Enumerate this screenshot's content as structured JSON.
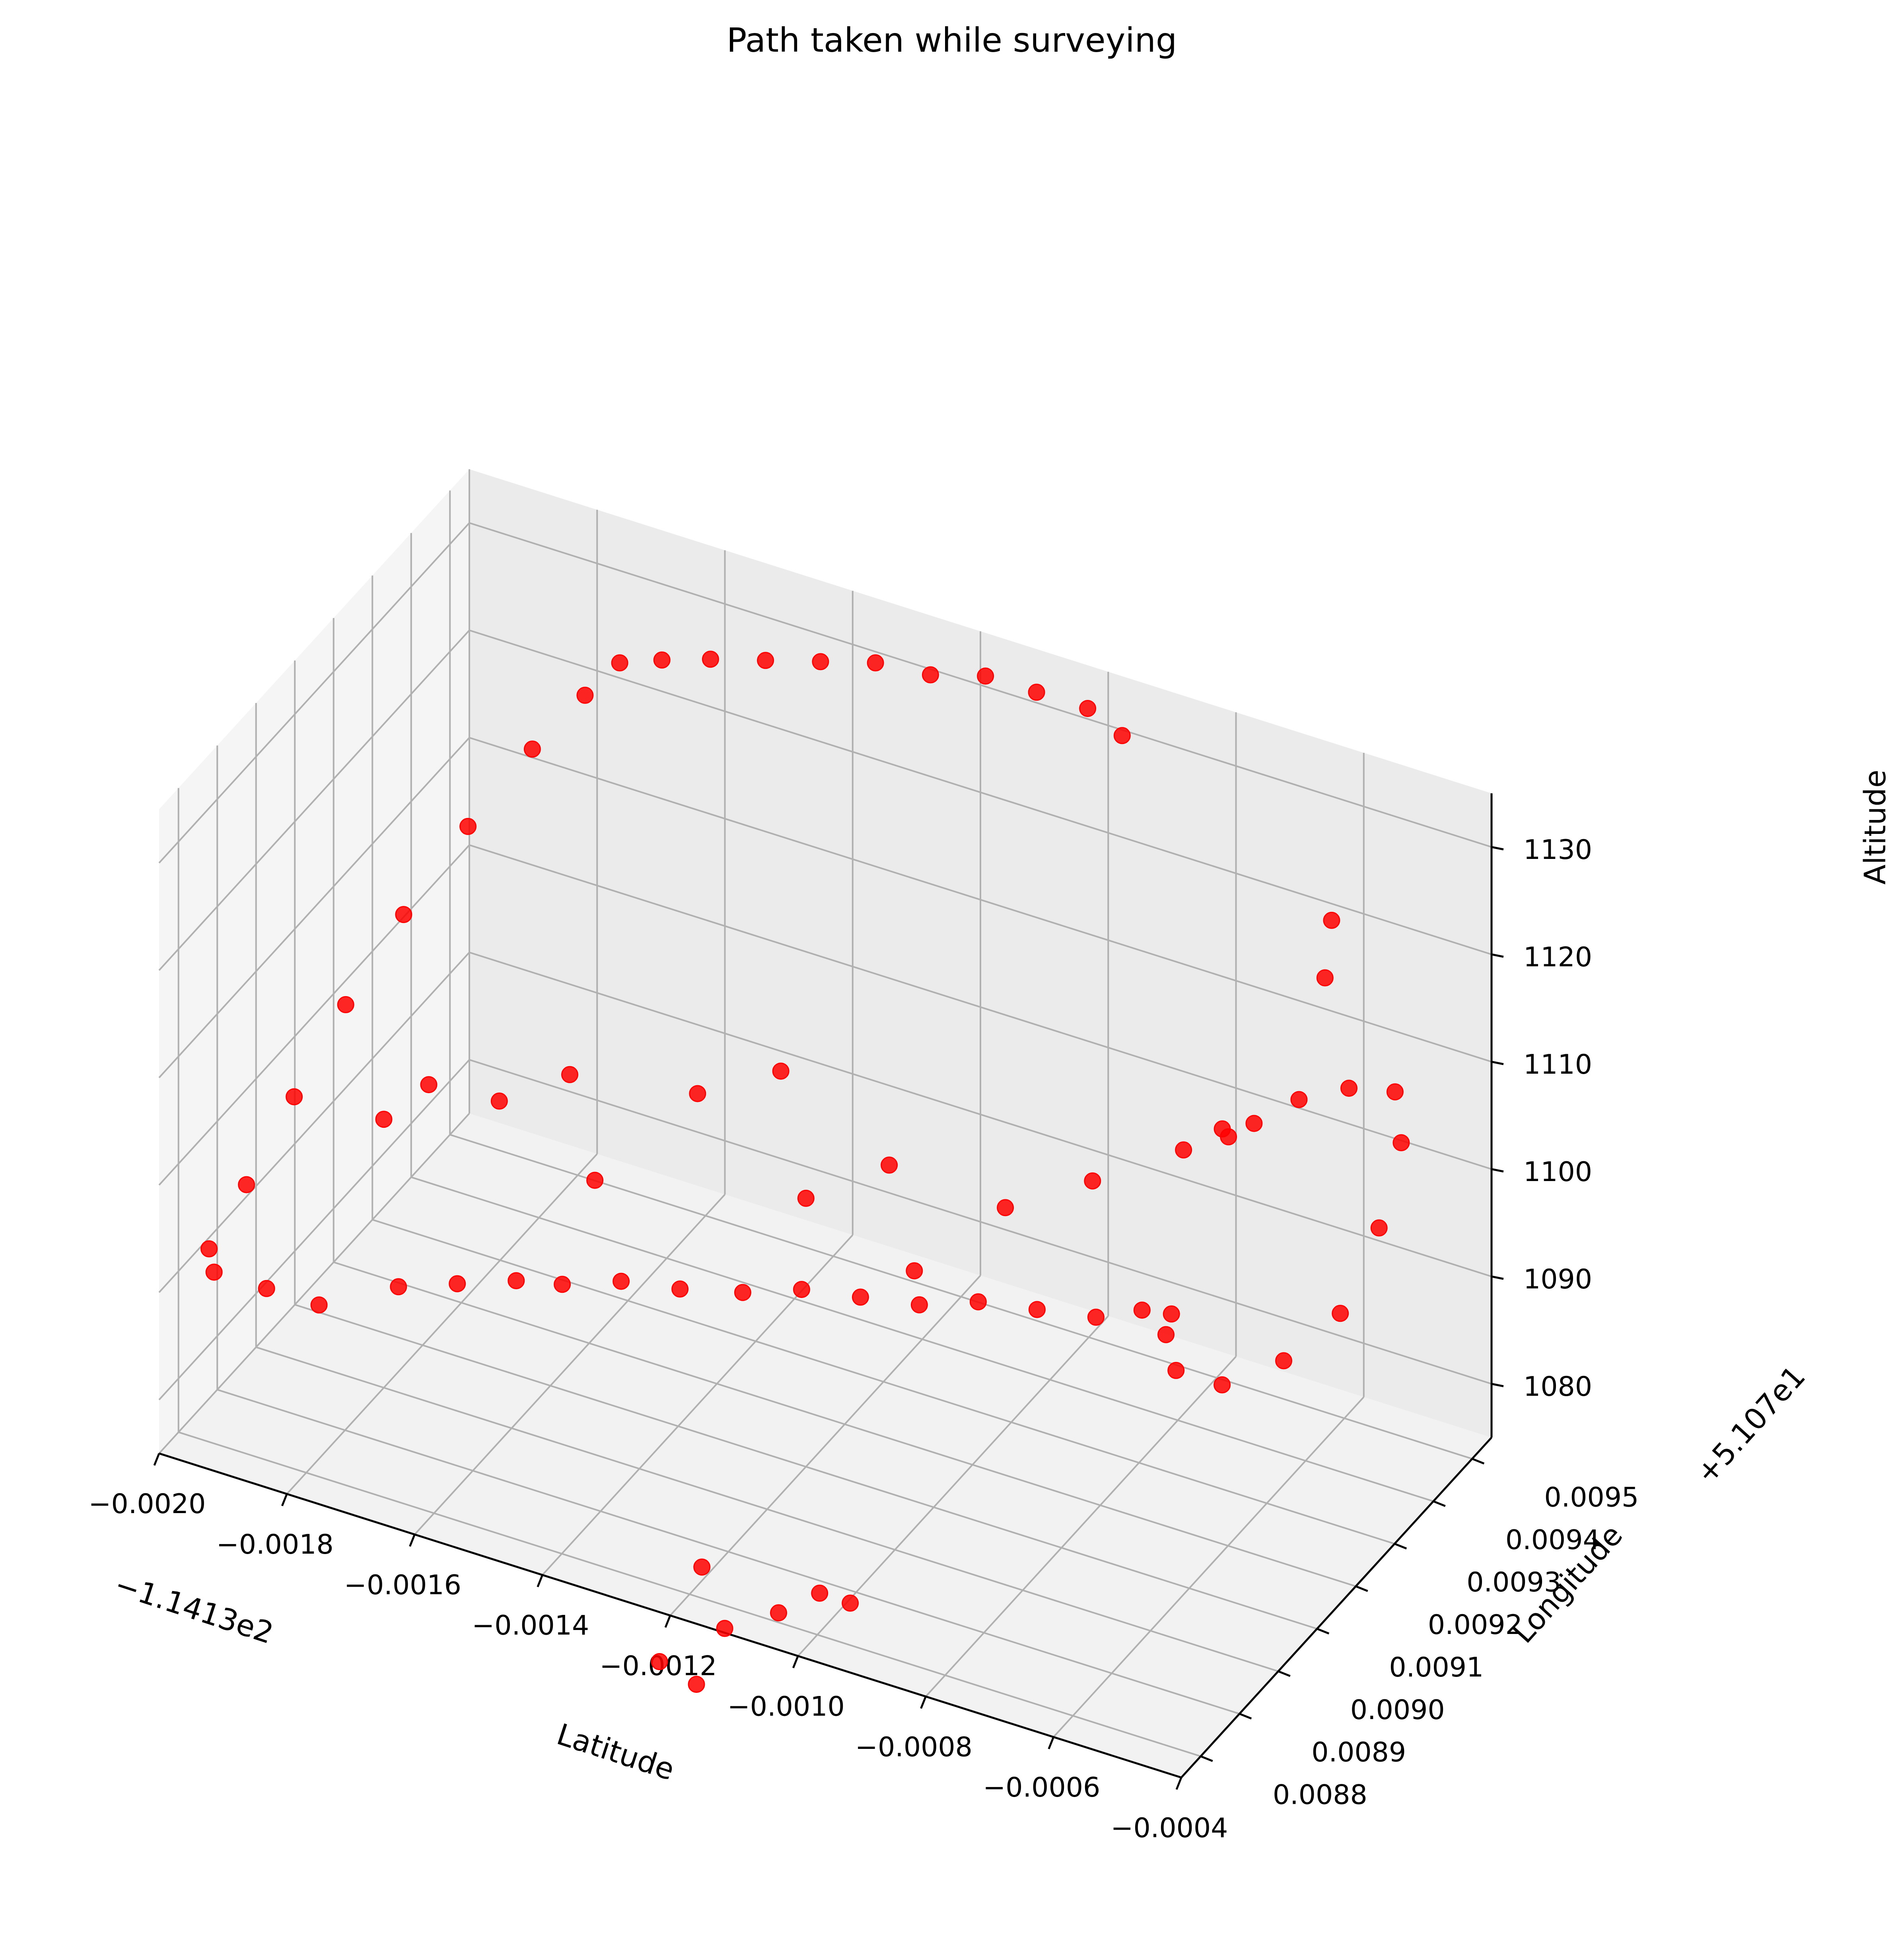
{
  "chart_data": {
    "type": "scatter3d",
    "title": "Path taken while surveying",
    "xlabel": "Latitude",
    "ylabel": "Longitude",
    "zlabel": "Altitude",
    "x_offset_label": "−1.1413e2",
    "y_offset_label": "+5.107e1",
    "x_ticks": [
      "−0.0020",
      "−0.0018",
      "−0.0016",
      "−0.0014",
      "−0.0012",
      "−0.0010",
      "−0.0008",
      "−0.0006",
      "−0.0004"
    ],
    "y_ticks": [
      "0.0088",
      "0.0089",
      "0.0090",
      "0.0091",
      "0.0092",
      "0.0093",
      "0.0094",
      "0.0095"
    ],
    "z_ticks": [
      "1080",
      "1090",
      "1100",
      "1110",
      "1120",
      "1130"
    ],
    "xlim": [
      -0.002,
      -0.0004
    ],
    "ylim": [
      0.00875,
      0.00955
    ],
    "zlim": [
      1075,
      1135
    ],
    "marker_color": "#ff0000",
    "grid": true,
    "points": [
      [
        -0.00171,
        0.00946,
        1126
      ],
      [
        -0.00165,
        0.00947,
        1127
      ],
      [
        -0.00158,
        0.00948,
        1128
      ],
      [
        -0.0015,
        0.00949,
        1129
      ],
      [
        -0.00142,
        0.0095,
        1130
      ],
      [
        -0.00134,
        0.00951,
        1131
      ],
      [
        -0.00126,
        0.00952,
        1131
      ],
      [
        -0.00118,
        0.00953,
        1132
      ],
      [
        -0.0011,
        0.00953,
        1132
      ],
      [
        -0.00102,
        0.00953,
        1132
      ],
      [
        -0.00096,
        0.00952,
        1131
      ],
      [
        -0.00174,
        0.00942,
        1124
      ],
      [
        -0.00178,
        0.00935,
        1121
      ],
      [
        -0.00182,
        0.00925,
        1117
      ],
      [
        -0.00186,
        0.00915,
        1112
      ],
      [
        -0.00189,
        0.00905,
        1107
      ],
      [
        -0.00191,
        0.00895,
        1102
      ],
      [
        -0.00193,
        0.00886,
        1097
      ],
      [
        -0.00194,
        0.00878,
        1094
      ],
      [
        -0.00192,
        0.00876,
        1093
      ],
      [
        -0.00185,
        0.00878,
        1092
      ],
      [
        -0.00178,
        0.0088,
        1091
      ],
      [
        -0.00168,
        0.00884,
        1093
      ],
      [
        -0.0016,
        0.00886,
        1094
      ],
      [
        -0.00152,
        0.00888,
        1095
      ],
      [
        -0.00146,
        0.0089,
        1095
      ],
      [
        -0.00138,
        0.00892,
        1096
      ],
      [
        -0.0013,
        0.00894,
        1096
      ],
      [
        -0.00122,
        0.00897,
        1096
      ],
      [
        -0.00114,
        0.00899,
        1097
      ],
      [
        -0.00106,
        0.00901,
        1097
      ],
      [
        -0.00098,
        0.00903,
        1097
      ],
      [
        -0.0009,
        0.00905,
        1098
      ],
      [
        -0.00082,
        0.00907,
        1098
      ],
      [
        -0.00074,
        0.00909,
        1098
      ],
      [
        -0.00068,
        0.00911,
        1099
      ],
      [
        -0.00064,
        0.00912,
        1099
      ],
      [
        -0.0018,
        0.009,
        1100
      ],
      [
        -0.00176,
        0.00905,
        1102
      ],
      [
        -0.00168,
        0.0091,
        1100
      ],
      [
        -0.0016,
        0.00915,
        1102
      ],
      [
        -0.0015,
        0.00905,
        1098
      ],
      [
        -0.0014,
        0.00915,
        1104
      ],
      [
        -0.0013,
        0.0092,
        1106
      ],
      [
        -0.0012,
        0.0091,
        1100
      ],
      [
        -0.0011,
        0.00915,
        1103
      ],
      [
        -0.001,
        0.00905,
        1099
      ],
      [
        -0.0009,
        0.00912,
        1104
      ],
      [
        -0.0008,
        0.00918,
        1106
      ],
      [
        -0.0007,
        0.00925,
        1108
      ],
      [
        -0.00062,
        0.0093,
        1110
      ],
      [
        -0.00058,
        0.00935,
        1111
      ],
      [
        -0.00052,
        0.00938,
        1112
      ],
      [
        -0.00046,
        0.0094,
        1112
      ],
      [
        -0.00042,
        0.00935,
        1110
      ],
      [
        -0.0004,
        0.00926,
        1106
      ],
      [
        -0.0004,
        0.00916,
        1102
      ],
      [
        -0.00044,
        0.00908,
        1100
      ],
      [
        -0.0005,
        0.00902,
        1099
      ],
      [
        -0.00056,
        0.009,
        1100
      ],
      [
        -0.0006,
        0.00904,
        1101
      ],
      [
        -0.0006,
        0.00945,
        1118
      ],
      [
        -0.00062,
        0.0095,
        1121
      ],
      [
        -0.00066,
        0.0093,
        1108
      ],
      [
        -0.0007,
        0.00935,
        1106
      ],
      [
        -0.00112,
        0.0087,
        1083
      ],
      [
        -0.00106,
        0.00866,
        1080
      ],
      [
        -0.001,
        0.0087,
        1081
      ],
      [
        -0.00096,
        0.00874,
        1082
      ],
      [
        -0.0009,
        0.00872,
        1083
      ],
      [
        -0.00115,
        0.00864,
        1076
      ],
      [
        -0.00108,
        0.00862,
        1076
      ]
    ]
  }
}
